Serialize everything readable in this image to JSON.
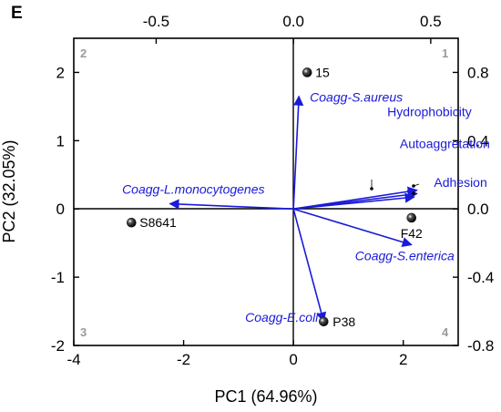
{
  "panel_letter": "E",
  "quadrant_labels": [
    "1",
    "2",
    "3",
    "4"
  ],
  "colors": {
    "vectors": "#1a1ad8",
    "points": "#222222",
    "quadrant_labels": "#9a9a9a"
  },
  "chart_data": {
    "type": "scatter",
    "subtype": "PCA biplot",
    "xlabel": "PC1 (64.96%)",
    "ylabel": "PC2 (32.05%)",
    "xlim": [
      -4,
      3
    ],
    "ylim": [
      -2,
      2.5
    ],
    "x_ticks": [
      -4,
      -2,
      0,
      2
    ],
    "y_ticks": [
      -2,
      -1,
      0,
      1,
      2
    ],
    "top_axis": {
      "lim": [
        -0.8,
        0.6
      ],
      "ticks": [
        -0.5,
        0.0,
        0.5
      ],
      "tick_labels": [
        "-0.5",
        "0.0",
        "0.5"
      ]
    },
    "right_axis": {
      "lim": [
        -0.8,
        1.0
      ],
      "ticks": [
        -0.8,
        -0.4,
        0.0,
        0.4,
        0.8
      ],
      "tick_labels": [
        "-0.8",
        "-0.4",
        "0.0",
        "0.4",
        "0.8"
      ]
    },
    "grid": false,
    "zero_lines": true,
    "scores": [
      {
        "label": "15",
        "x": 0.25,
        "y": 2.0
      },
      {
        "label": "S8641",
        "x": -2.95,
        "y": -0.2
      },
      {
        "label": "F42",
        "x": 2.15,
        "y": -0.13
      },
      {
        "label": "P38",
        "x": 0.55,
        "y": -1.65
      }
    ],
    "loadings": [
      {
        "label": "Coagg-S.aureus",
        "x": 0.02,
        "y": 0.66,
        "italic": true
      },
      {
        "label": "Hydrophobicity",
        "x": 0.45,
        "y": 0.11,
        "italic": false
      },
      {
        "label": "Autoaggretation",
        "x": 0.45,
        "y": 0.09,
        "italic": false
      },
      {
        "label": "Adhesion",
        "x": 0.44,
        "y": 0.07,
        "italic": false
      },
      {
        "label": "Coagg-L.monocytogenes",
        "x": -0.45,
        "y": 0.03,
        "italic": true
      },
      {
        "label": "Coagg-S.enterica",
        "x": 0.43,
        "y": -0.21,
        "italic": true
      },
      {
        "label": "Coagg-E.coli",
        "x": 0.11,
        "y": -0.66,
        "italic": true
      }
    ]
  }
}
